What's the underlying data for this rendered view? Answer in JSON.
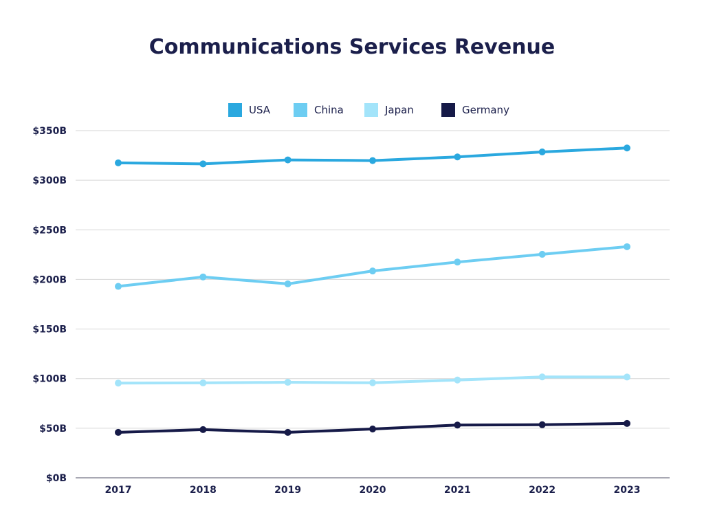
{
  "chart_data": {
    "type": "line",
    "title": "Communications Services Revenue",
    "xlabel": "",
    "ylabel": "",
    "categories": [
      "2017",
      "2018",
      "2019",
      "2020",
      "2021",
      "2022",
      "2023"
    ],
    "ylim": [
      0,
      350
    ],
    "yticks": [
      0,
      50,
      100,
      150,
      200,
      250,
      300,
      350
    ],
    "ytick_labels": [
      "$0B",
      "$50B",
      "$100B",
      "$150B",
      "$200B",
      "$250B",
      "$300B",
      "$350B"
    ],
    "grid": true,
    "legend_position": "top-center",
    "series": [
      {
        "name": "USA",
        "color": "#2aa8df",
        "values": [
          317.5,
          316.5,
          320.5,
          319.8,
          323.5,
          328.5,
          332.5
        ]
      },
      {
        "name": "China",
        "color": "#6dcdf2",
        "values": [
          193,
          202.5,
          195.5,
          208.5,
          217.5,
          225.3,
          233
        ]
      },
      {
        "name": "Japan",
        "color": "#a3e4fa",
        "values": [
          95.5,
          95.7,
          96.3,
          95.8,
          98.6,
          101.7,
          101.6
        ]
      },
      {
        "name": "Germany",
        "color": "#161a48",
        "values": [
          45.8,
          48.6,
          45.8,
          49.2,
          53.2,
          53.5,
          54.8
        ]
      }
    ]
  }
}
